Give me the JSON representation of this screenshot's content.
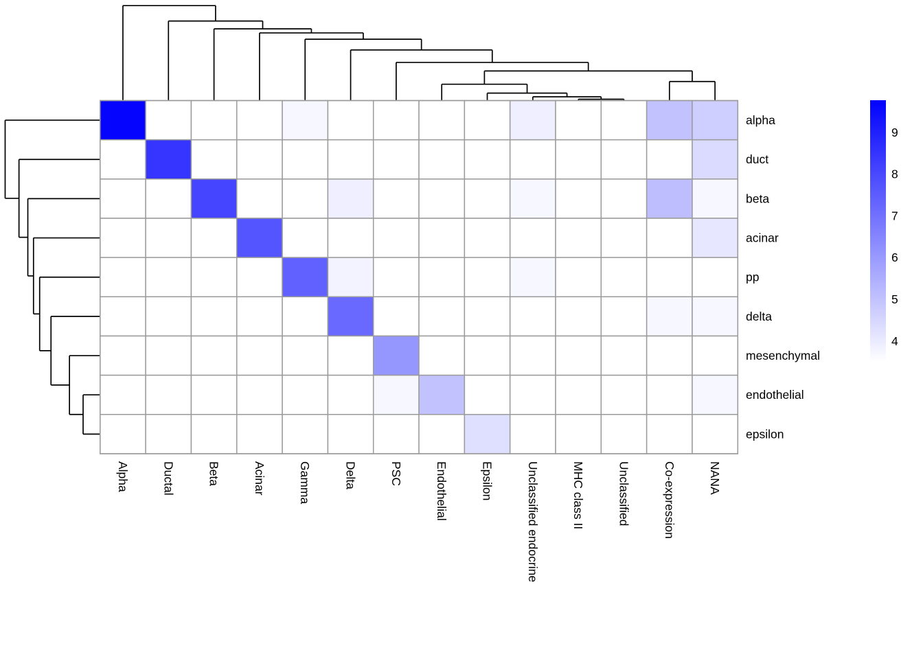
{
  "chart_data": {
    "type": "heatmap",
    "title": "",
    "columns": [
      "Alpha",
      "Ductal",
      "Beta",
      "Acinar",
      "Gamma",
      "Delta",
      "PSC",
      "Endothelial",
      "Epsilon",
      "Unclassified endocrine",
      "MHC class II",
      "Unclassified",
      "Co-expression",
      "NANA"
    ],
    "rows": [
      "alpha",
      "duct",
      "beta",
      "acinar",
      "pp",
      "delta",
      "mesenchymal",
      "endothelial",
      "epsilon"
    ],
    "matrix": [
      [
        9.7,
        3.5,
        3.5,
        3.5,
        3.7,
        3.5,
        3.5,
        3.5,
        3.5,
        3.9,
        3.5,
        3.5,
        5.0,
        4.7
      ],
      [
        3.5,
        8.5,
        3.5,
        3.5,
        3.5,
        3.5,
        3.5,
        3.5,
        3.5,
        3.5,
        3.5,
        3.5,
        3.5,
        4.4
      ],
      [
        3.5,
        3.5,
        8.1,
        3.5,
        3.5,
        3.9,
        3.5,
        3.5,
        3.5,
        3.7,
        3.5,
        3.5,
        5.1,
        3.7
      ],
      [
        3.5,
        3.5,
        3.5,
        7.7,
        3.5,
        3.5,
        3.5,
        3.5,
        3.5,
        3.5,
        3.5,
        3.5,
        3.5,
        4.1
      ],
      [
        3.5,
        3.5,
        3.5,
        3.5,
        7.4,
        3.8,
        3.5,
        3.5,
        3.5,
        3.7,
        3.5,
        3.5,
        3.5,
        3.5
      ],
      [
        3.5,
        3.5,
        3.5,
        3.5,
        3.5,
        7.2,
        3.5,
        3.5,
        3.5,
        3.5,
        3.5,
        3.5,
        3.7,
        3.7
      ],
      [
        3.5,
        3.5,
        3.5,
        3.5,
        3.5,
        3.5,
        6.1,
        3.5,
        3.5,
        3.5,
        3.5,
        3.5,
        3.5,
        3.5
      ],
      [
        3.5,
        3.5,
        3.5,
        3.5,
        3.5,
        3.5,
        3.7,
        5.0,
        3.5,
        3.5,
        3.5,
        3.5,
        3.5,
        3.7
      ],
      [
        3.5,
        3.5,
        3.5,
        3.5,
        3.5,
        3.5,
        3.5,
        3.5,
        4.3,
        3.5,
        3.5,
        3.5,
        3.5,
        3.5
      ]
    ],
    "color_scale": {
      "min_value": 3.5,
      "max_value": 9.8,
      "min_color": "#FFFFFF",
      "max_color": "#0000FF"
    },
    "legend": {
      "ticks": [
        "9",
        "8",
        "7",
        "6",
        "5",
        "4"
      ],
      "tick_values": [
        9,
        8,
        7,
        6,
        5,
        4
      ],
      "top_value": 9.77,
      "bottom_value": 3.52,
      "position": "right"
    },
    "grid": true,
    "grid_color": "#9B9B9B",
    "dendrogram_line_color": "#000000",
    "column_dendrogram": {
      "joins": [
        {
          "a": "L10",
          "b": "L11",
          "h": 0.014
        },
        {
          "a": "L9",
          "b": "N0",
          "h": 0.039
        },
        {
          "a": "L8",
          "b": "N1",
          "h": 0.077
        },
        {
          "a": "L7",
          "b": "N2",
          "h": 0.169
        },
        {
          "a": "L12",
          "b": "L13",
          "h": 0.197
        },
        {
          "a": "N3",
          "b": "N4",
          "h": 0.306
        },
        {
          "a": "L6",
          "b": "N5",
          "h": 0.394
        },
        {
          "a": "L5",
          "b": "N6",
          "h": 0.523
        },
        {
          "a": "L4",
          "b": "N7",
          "h": 0.634
        },
        {
          "a": "L3",
          "b": "N8",
          "h": 0.699
        },
        {
          "a": "L2",
          "b": "N9",
          "h": 0.741
        },
        {
          "a": "L1",
          "b": "N10",
          "h": 0.822
        },
        {
          "a": "L0",
          "b": "N11",
          "h": 0.981
        }
      ]
    },
    "row_dendrogram": {
      "joins": [
        {
          "a": "L7",
          "b": "L8",
          "h": 0.177
        },
        {
          "a": "L6",
          "b": "N0",
          "h": 0.319
        },
        {
          "a": "L5",
          "b": "N1",
          "h": 0.511
        },
        {
          "a": "L4",
          "b": "N2",
          "h": 0.629
        },
        {
          "a": "L3",
          "b": "N3",
          "h": 0.693
        },
        {
          "a": "L2",
          "b": "N4",
          "h": 0.752
        },
        {
          "a": "L1",
          "b": "N5",
          "h": 0.844
        },
        {
          "a": "L0",
          "b": "N6",
          "h": 0.988
        }
      ]
    }
  }
}
